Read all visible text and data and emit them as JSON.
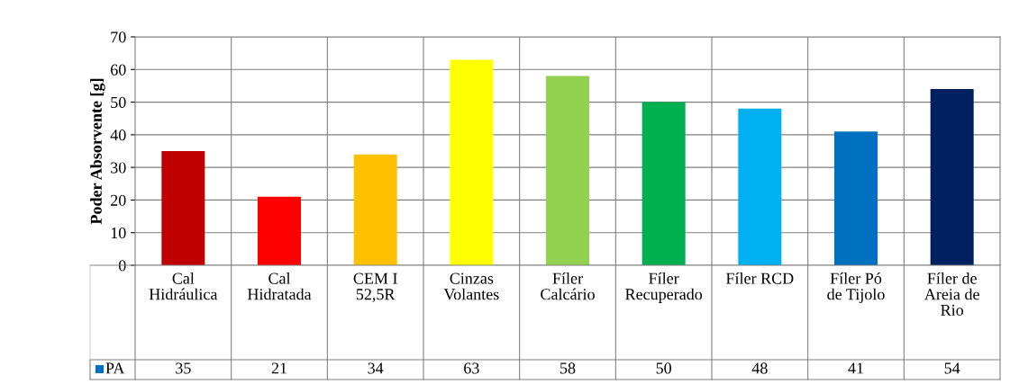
{
  "chart_data": {
    "type": "bar",
    "categories": [
      "Cal Hidráulica",
      "Cal Hidratada",
      "CEM I 52,5R",
      "Cinzas Volantes",
      "Fíler Calcário",
      "Fíler Recuperado",
      "Fíler RCD",
      "Fíler Pó de Tijolo",
      "Fíler de Areia de Rio"
    ],
    "series": [
      {
        "name": "PA",
        "color": "#0070c0",
        "colors": [
          "#c00000",
          "#ff0000",
          "#ffc000",
          "#ffff00",
          "#92d050",
          "#00b050",
          "#00b0f0",
          "#0070c0",
          "#002060"
        ],
        "values": [
          35,
          21,
          34,
          63,
          58,
          50,
          48,
          41,
          54
        ]
      }
    ],
    "ylabel": "Poder Absorvente [g]",
    "ylim": [
      0,
      70
    ],
    "yticks": [
      0,
      10,
      20,
      30,
      40,
      50,
      60,
      70
    ],
    "grid": true,
    "legend": "bottom",
    "data_labels": true
  }
}
